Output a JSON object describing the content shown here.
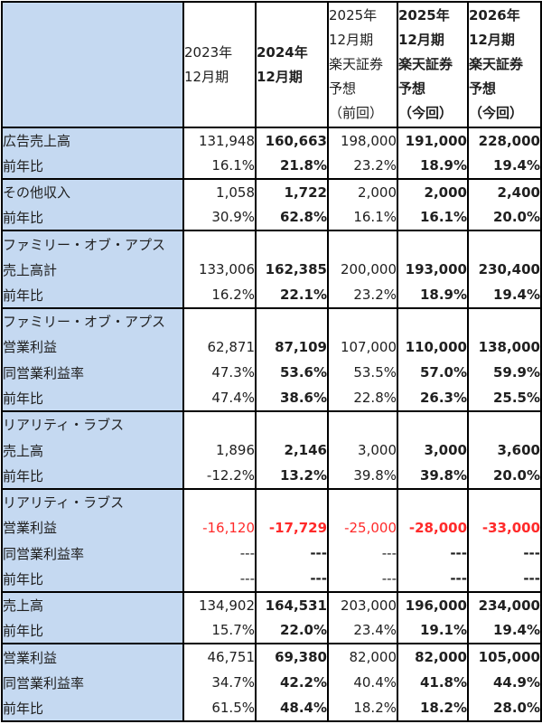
{
  "header": {
    "c1": [
      "2023年",
      "12月期"
    ],
    "c2": [
      "2024年",
      "12月期"
    ],
    "c3": [
      "2025年",
      "12月期",
      "楽天証券",
      "予想",
      "（前回）"
    ],
    "c4": [
      "2025年",
      "12月期",
      "楽天証券",
      "予想",
      "（今回）"
    ],
    "c5": [
      "2026年",
      "12月期",
      "楽天証券",
      "予想",
      "（今回）"
    ]
  },
  "rows": [
    {
      "label": "広告売上高",
      "values": [
        "131,948",
        "160,663",
        "198,000",
        "191,000",
        "228,000"
      ],
      "section_start": true
    },
    {
      "label": "前年比",
      "values": [
        "16.1%",
        "21.8%",
        "23.2%",
        "18.9%",
        "19.4%"
      ]
    },
    {
      "label": "その他収入",
      "values": [
        "1,058",
        "1,722",
        "2,000",
        "2,000",
        "2,400"
      ],
      "section_start": true
    },
    {
      "label": "前年比",
      "values": [
        "30.9%",
        "62.8%",
        "16.1%",
        "16.1%",
        "20.0%"
      ]
    },
    {
      "label": "ファミリー・オブ・アプス",
      "values": [
        "",
        "",
        "",
        "",
        ""
      ],
      "section_start": true
    },
    {
      "label": "売上高計",
      "values": [
        "133,006",
        "162,385",
        "200,000",
        "193,000",
        "230,400"
      ]
    },
    {
      "label": "前年比",
      "values": [
        "16.2%",
        "22.1%",
        "23.2%",
        "18.9%",
        "19.4%"
      ]
    },
    {
      "label": "ファミリー・オブ・アプス",
      "values": [
        "",
        "",
        "",
        "",
        ""
      ],
      "section_start": true
    },
    {
      "label": "営業利益",
      "values": [
        "62,871",
        "87,109",
        "107,000",
        "110,000",
        "138,000"
      ]
    },
    {
      "label": "同営業利益率",
      "values": [
        "47.3%",
        "53.6%",
        "53.5%",
        "57.0%",
        "59.9%"
      ]
    },
    {
      "label": "前年比",
      "values": [
        "47.4%",
        "38.6%",
        "22.8%",
        "26.3%",
        "25.5%"
      ]
    },
    {
      "label": "リアリティ・ラブス",
      "values": [
        "",
        "",
        "",
        "",
        ""
      ],
      "section_start": true
    },
    {
      "label": "売上高",
      "values": [
        "1,896",
        "2,146",
        "3,000",
        "3,000",
        "3,600"
      ]
    },
    {
      "label": "前年比",
      "values": [
        "-12.2%",
        "13.2%",
        "39.8%",
        "39.8%",
        "20.0%"
      ]
    },
    {
      "label": "リアリティ・ラブス",
      "values": [
        "",
        "",
        "",
        "",
        ""
      ],
      "section_start": true
    },
    {
      "label": "営業利益",
      "values": [
        "-16,120",
        "-17,729",
        "-25,000",
        "-28,000",
        "-33,000"
      ],
      "negative": true
    },
    {
      "label": "同営業利益率",
      "values": [
        "---",
        "---",
        "---",
        "---",
        "---"
      ]
    },
    {
      "label": "前年比",
      "values": [
        "---",
        "---",
        "---",
        "---",
        "---"
      ]
    },
    {
      "label": "売上高",
      "values": [
        "134,902",
        "164,531",
        "203,000",
        "196,000",
        "234,000"
      ],
      "section_start": true
    },
    {
      "label": "前年比",
      "values": [
        "15.7%",
        "22.0%",
        "23.4%",
        "19.1%",
        "19.4%"
      ]
    },
    {
      "label": "営業利益",
      "values": [
        "46,751",
        "69,380",
        "82,000",
        "82,000",
        "105,000"
      ],
      "section_start": true
    },
    {
      "label": "同営業利益率",
      "values": [
        "34.7%",
        "42.2%",
        "40.4%",
        "41.8%",
        "44.9%"
      ]
    },
    {
      "label": "前年比",
      "values": [
        "61.5%",
        "48.4%",
        "18.2%",
        "18.2%",
        "28.0%"
      ]
    }
  ],
  "colors": {
    "label_bg": "#c5d9f1",
    "negative": "#ff2a2a",
    "border": "#000000"
  }
}
